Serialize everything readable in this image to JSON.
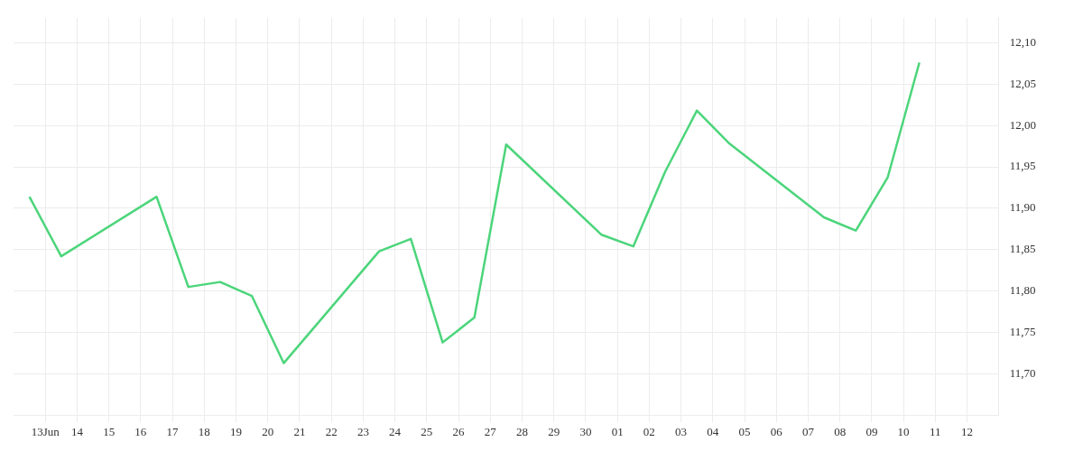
{
  "chart_data": {
    "type": "line",
    "x": [
      "--06-12T12:00",
      "--06-13T12:00",
      "--06-16T12:00",
      "--06-17T12:00",
      "--06-18T12:00",
      "--06-19T12:00",
      "--06-20T12:00",
      "--06-23T12:00",
      "--06-24T12:00",
      "--06-25T12:00",
      "--06-26T12:00",
      "--06-27T12:00",
      "--06-30T12:00",
      "--07-01T12:00",
      "--07-02T12:00",
      "--07-03T12:00",
      "--07-04T12:00",
      "--07-07T12:00",
      "--07-08T12:00",
      "--07-09T12:00",
      "--07-10T12:00"
    ],
    "series": [
      {
        "color": "#4cd57b",
        "values": [
          11.914,
          11.842,
          11.914,
          11.805,
          11.811,
          11.794,
          11.713,
          11.848,
          11.863,
          11.738,
          11.768,
          11.977,
          11.868,
          11.854,
          11.944,
          12.018,
          11.979,
          11.889,
          11.873,
          11.937,
          12.076
        ]
      }
    ],
    "xlim": [
      "--06-12",
      "--07-13"
    ],
    "xticks": [
      {
        "value": "--06-13",
        "label": "13Jun"
      },
      {
        "value": "--06-14",
        "label": "14"
      },
      {
        "value": "--06-15",
        "label": "15"
      },
      {
        "value": "--06-16",
        "label": "16"
      },
      {
        "value": "--06-17",
        "label": "17"
      },
      {
        "value": "--06-18",
        "label": "18"
      },
      {
        "value": "--06-19",
        "label": "19"
      },
      {
        "value": "--06-20",
        "label": "20"
      },
      {
        "value": "--06-21",
        "label": "21"
      },
      {
        "value": "--06-22",
        "label": "22"
      },
      {
        "value": "--06-23",
        "label": "23"
      },
      {
        "value": "--06-24",
        "label": "24"
      },
      {
        "value": "--06-25",
        "label": "25"
      },
      {
        "value": "--06-26",
        "label": "26"
      },
      {
        "value": "--06-27",
        "label": "27"
      },
      {
        "value": "--06-28",
        "label": "28"
      },
      {
        "value": "--06-29",
        "label": "29"
      },
      {
        "value": "--06-30",
        "label": "30"
      },
      {
        "value": "--07-01",
        "label": "01"
      },
      {
        "value": "--07-02",
        "label": "02"
      },
      {
        "value": "--07-03",
        "label": "03"
      },
      {
        "value": "--07-04",
        "label": "04"
      },
      {
        "value": "--07-05",
        "label": "05"
      },
      {
        "value": "--07-06",
        "label": "06"
      },
      {
        "value": "--07-07",
        "label": "07"
      },
      {
        "value": "--07-08",
        "label": "08"
      },
      {
        "value": "--07-09",
        "label": "09"
      },
      {
        "value": "--07-10",
        "label": "10"
      },
      {
        "value": "--07-11",
        "label": "11"
      },
      {
        "value": "--07-12",
        "label": "12"
      }
    ],
    "ylim": [
      11.65,
      12.13
    ],
    "yticks": [
      {
        "value": 11.7,
        "label": "11,70"
      },
      {
        "value": 11.75,
        "label": "11,75"
      },
      {
        "value": 11.8,
        "label": "11,80"
      },
      {
        "value": 11.85,
        "label": "11,85"
      },
      {
        "value": 11.9,
        "label": "11,90"
      },
      {
        "value": 11.95,
        "label": "11,95"
      },
      {
        "value": 12.0,
        "label": "12,00"
      },
      {
        "value": 12.05,
        "label": "12,05"
      },
      {
        "value": 12.1,
        "label": "12,10"
      }
    ],
    "grid": true,
    "legend": false,
    "marker": "none",
    "line_style": "solid"
  }
}
